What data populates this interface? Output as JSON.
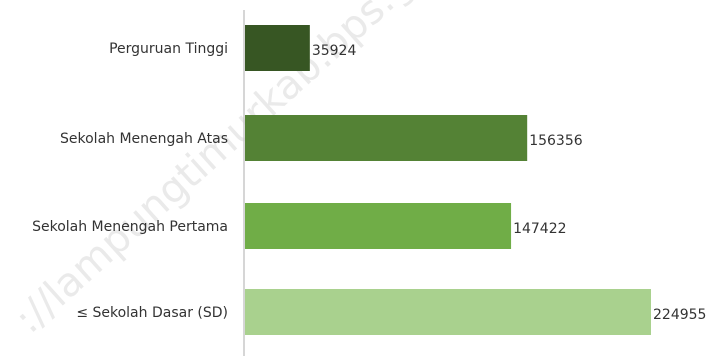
{
  "chart_data": {
    "type": "bar",
    "orientation": "horizontal",
    "categories": [
      "Perguruan Tinggi",
      "Sekolah Menengah Atas",
      "Sekolah Menengah Pertama",
      "≤ Sekolah Dasar (SD)"
    ],
    "values": [
      35924,
      156356,
      147422,
      224955
    ],
    "value_labels": [
      "35924",
      "156356",
      "147422",
      "224955"
    ],
    "bar_colors": [
      "#375623",
      "#548235",
      "#70ad47",
      "#a9d18e"
    ],
    "title": "",
    "xlabel": "",
    "ylabel": "",
    "xlim": [
      0,
      224955
    ],
    "grid": false,
    "legend": "none"
  },
  "watermark": {
    "text": "://lampungtimurkab.bps.go.id"
  }
}
